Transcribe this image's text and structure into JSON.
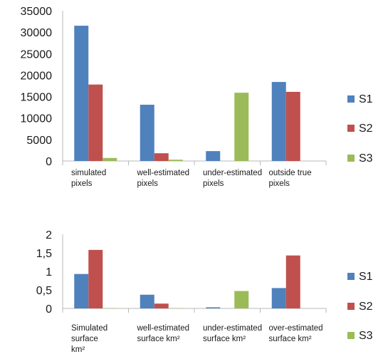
{
  "chart_data": [
    {
      "type": "bar",
      "title": "",
      "xlabel": "",
      "ylabel": "",
      "ylim": [
        0,
        35000
      ],
      "yticks": [
        "0",
        "5000",
        "10000",
        "15000",
        "20000",
        "25000",
        "30000",
        "35000"
      ],
      "categories": [
        [
          "simulated",
          "pixels"
        ],
        [
          "well-estimated",
          "pixels"
        ],
        [
          "under-estimated",
          "pixels"
        ],
        [
          "outside true",
          "pixels"
        ]
      ],
      "series": [
        {
          "name": "S1",
          "color": "#4f81bd",
          "values": [
            31500,
            13100,
            2300,
            18400
          ]
        },
        {
          "name": "S2",
          "color": "#c0504d",
          "values": [
            17800,
            1800,
            0,
            16100
          ]
        },
        {
          "name": "S3",
          "color": "#9bbb59",
          "values": [
            700,
            300,
            15900,
            0
          ]
        }
      ],
      "grid": false,
      "legend": "right"
    },
    {
      "type": "bar",
      "title": "",
      "xlabel": "",
      "ylabel": "",
      "ylim": [
        0,
        2
      ],
      "yticks": [
        "0",
        "0,5",
        "1",
        "1,5",
        "2"
      ],
      "categories": [
        [
          "Simulated",
          "surface",
          "km²"
        ],
        [
          "well-estimated",
          "surface km²"
        ],
        [
          "under-estimated",
          "surface km²"
        ],
        [
          "over-estimated",
          "surface km²"
        ]
      ],
      "series": [
        {
          "name": "S1",
          "color": "#4f81bd",
          "values": [
            0.93,
            0.37,
            0.03,
            0.55
          ]
        },
        {
          "name": "S2",
          "color": "#c0504d",
          "values": [
            1.58,
            0.13,
            0,
            1.43
          ]
        },
        {
          "name": "S3",
          "color": "#9bbb59",
          "values": [
            0.01,
            0.01,
            0.47,
            0
          ]
        }
      ],
      "grid": false,
      "legend": "right"
    }
  ]
}
